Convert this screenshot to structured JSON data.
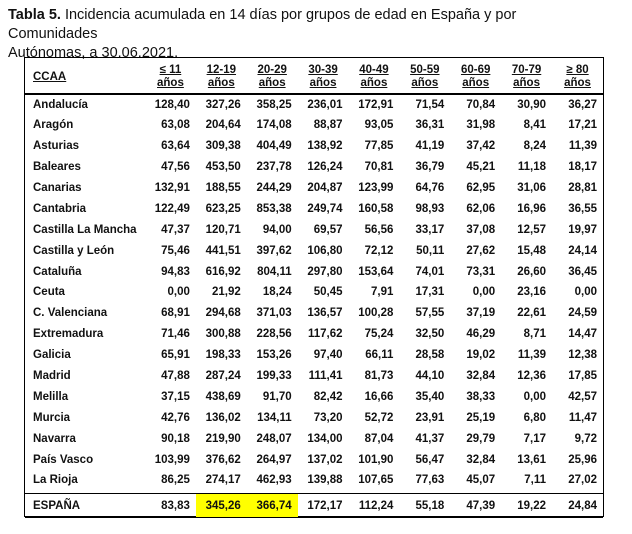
{
  "caption": {
    "label": "Tabla 5.",
    "text_line1": "Incidencia acumulada en 14 días por grupos de edad en España y por Comunidades",
    "text_line2": "Autónomas, a 30.06.2021."
  },
  "table": {
    "header": {
      "first": "CCAA",
      "age_groups": [
        {
          "top": "≤ 11",
          "bottom": "años"
        },
        {
          "top": "12-19",
          "bottom": "años"
        },
        {
          "top": "20-29",
          "bottom": "años"
        },
        {
          "top": "30-39",
          "bottom": "años"
        },
        {
          "top": "40-49",
          "bottom": "años"
        },
        {
          "top": "50-59",
          "bottom": "años"
        },
        {
          "top": "60-69",
          "bottom": "años"
        },
        {
          "top": "70-79",
          "bottom": "años"
        },
        {
          "top": "≥ 80",
          "bottom": "años"
        }
      ]
    },
    "rows": [
      {
        "name": "Andalucía",
        "values": [
          "128,40",
          "327,26",
          "358,25",
          "236,01",
          "172,91",
          "71,54",
          "70,84",
          "30,90",
          "36,27"
        ]
      },
      {
        "name": "Aragón",
        "values": [
          "63,08",
          "204,64",
          "174,08",
          "88,87",
          "93,05",
          "36,31",
          "31,98",
          "8,41",
          "17,21"
        ]
      },
      {
        "name": "Asturias",
        "values": [
          "63,64",
          "309,38",
          "404,49",
          "138,92",
          "77,85",
          "41,19",
          "37,42",
          "8,24",
          "11,39"
        ]
      },
      {
        "name": "Baleares",
        "values": [
          "47,56",
          "453,50",
          "237,78",
          "126,24",
          "70,81",
          "36,79",
          "45,21",
          "11,18",
          "18,17"
        ]
      },
      {
        "name": "Canarias",
        "values": [
          "132,91",
          "188,55",
          "244,29",
          "204,87",
          "123,99",
          "64,76",
          "62,95",
          "31,06",
          "28,81"
        ]
      },
      {
        "name": "Cantabria",
        "values": [
          "122,49",
          "623,25",
          "853,38",
          "249,74",
          "160,58",
          "98,93",
          "62,06",
          "16,96",
          "36,55"
        ]
      },
      {
        "name": "Castilla La Mancha",
        "values": [
          "47,37",
          "120,71",
          "94,00",
          "69,57",
          "56,56",
          "33,17",
          "37,08",
          "12,57",
          "19,97"
        ]
      },
      {
        "name": "Castilla y León",
        "values": [
          "75,46",
          "441,51",
          "397,62",
          "106,80",
          "72,12",
          "50,11",
          "27,62",
          "15,48",
          "24,14"
        ]
      },
      {
        "name": "Cataluña",
        "values": [
          "94,83",
          "616,92",
          "804,11",
          "297,80",
          "153,64",
          "74,01",
          "73,31",
          "26,60",
          "36,45"
        ]
      },
      {
        "name": "Ceuta",
        "values": [
          "0,00",
          "21,92",
          "18,24",
          "50,45",
          "7,91",
          "17,31",
          "0,00",
          "23,16",
          "0,00"
        ]
      },
      {
        "name": "C. Valenciana",
        "values": [
          "68,91",
          "294,68",
          "371,03",
          "136,57",
          "100,28",
          "57,55",
          "37,19",
          "22,61",
          "24,59"
        ]
      },
      {
        "name": "Extremadura",
        "values": [
          "71,46",
          "300,88",
          "228,56",
          "117,62",
          "75,24",
          "32,50",
          "46,29",
          "8,71",
          "14,47"
        ]
      },
      {
        "name": "Galicia",
        "values": [
          "65,91",
          "198,33",
          "153,26",
          "97,40",
          "66,11",
          "28,58",
          "19,02",
          "11,39",
          "12,38"
        ]
      },
      {
        "name": "Madrid",
        "values": [
          "47,88",
          "287,24",
          "199,33",
          "111,41",
          "81,73",
          "44,10",
          "32,84",
          "12,36",
          "17,85"
        ]
      },
      {
        "name": "Melilla",
        "values": [
          "37,15",
          "438,69",
          "91,70",
          "82,42",
          "16,66",
          "35,40",
          "38,33",
          "0,00",
          "42,57"
        ]
      },
      {
        "name": "Murcia",
        "values": [
          "42,76",
          "136,02",
          "134,11",
          "73,20",
          "52,72",
          "23,91",
          "25,19",
          "6,80",
          "11,47"
        ]
      },
      {
        "name": "Navarra",
        "values": [
          "90,18",
          "219,90",
          "248,07",
          "134,00",
          "87,04",
          "41,37",
          "29,79",
          "7,17",
          "9,72"
        ]
      },
      {
        "name": "País Vasco",
        "values": [
          "103,99",
          "376,62",
          "264,97",
          "137,02",
          "101,90",
          "56,47",
          "32,84",
          "13,61",
          "25,96"
        ]
      },
      {
        "name": "La Rioja",
        "values": [
          "86,25",
          "274,17",
          "462,93",
          "139,88",
          "107,65",
          "77,63",
          "45,07",
          "7,11",
          "27,02"
        ]
      }
    ],
    "total": {
      "name": "ESPAÑA",
      "values": [
        "83,83",
        "345,26",
        "366,74",
        "172,17",
        "112,24",
        "55,18",
        "47,39",
        "19,22",
        "24,84"
      ],
      "highlight_color": "#ffff00"
    }
  }
}
